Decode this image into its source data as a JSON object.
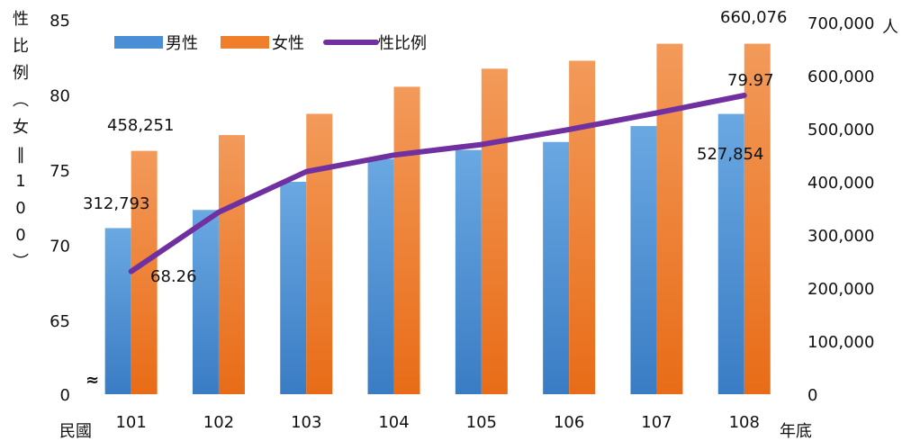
{
  "chart_data": {
    "type": "bar",
    "categories": [
      "101",
      "102",
      "103",
      "104",
      "105",
      "106",
      "107",
      "108"
    ],
    "series": [
      {
        "name": "男性",
        "kind": "bar",
        "axis": "right",
        "color": "#4a8fd6",
        "values": [
          312793,
          347000,
          400000,
          443000,
          460000,
          475000,
          505000,
          527854
        ]
      },
      {
        "name": "女性",
        "kind": "bar",
        "axis": "right",
        "color": "#f07f2c",
        "values": [
          458251,
          488000,
          528000,
          579000,
          613000,
          628000,
          660000,
          660076
        ]
      },
      {
        "name": "性比例",
        "kind": "line",
        "axis": "left",
        "color": "#7030a0",
        "values": [
          68.26,
          72.2,
          74.9,
          76.0,
          76.7,
          77.7,
          78.8,
          79.97
        ]
      }
    ],
    "left_axis": {
      "ticks": [
        "0",
        "65",
        "70",
        "75",
        "80",
        "85"
      ],
      "break_symbol": "≈",
      "label_chars": [
        "性",
        "比",
        "例",
        "︵",
        "女",
        "‖",
        "1",
        "0",
        "0",
        "︶"
      ]
    },
    "right_axis": {
      "ticks": [
        "0",
        "100,000",
        "200,000",
        "300,000",
        "400,000",
        "500,000",
        "600,000",
        "700,000"
      ],
      "ylim": [
        0,
        700000
      ],
      "unit": "人"
    },
    "x_axis": {
      "prefix": "民國",
      "suffix": "年底"
    },
    "data_labels": {
      "male_first": "312,793",
      "female_first": "458,251",
      "ratio_first": "68.26",
      "male_last": "527,854",
      "female_last": "660,076",
      "ratio_last": "79.97"
    },
    "legend": {
      "placement": "top-left"
    }
  }
}
